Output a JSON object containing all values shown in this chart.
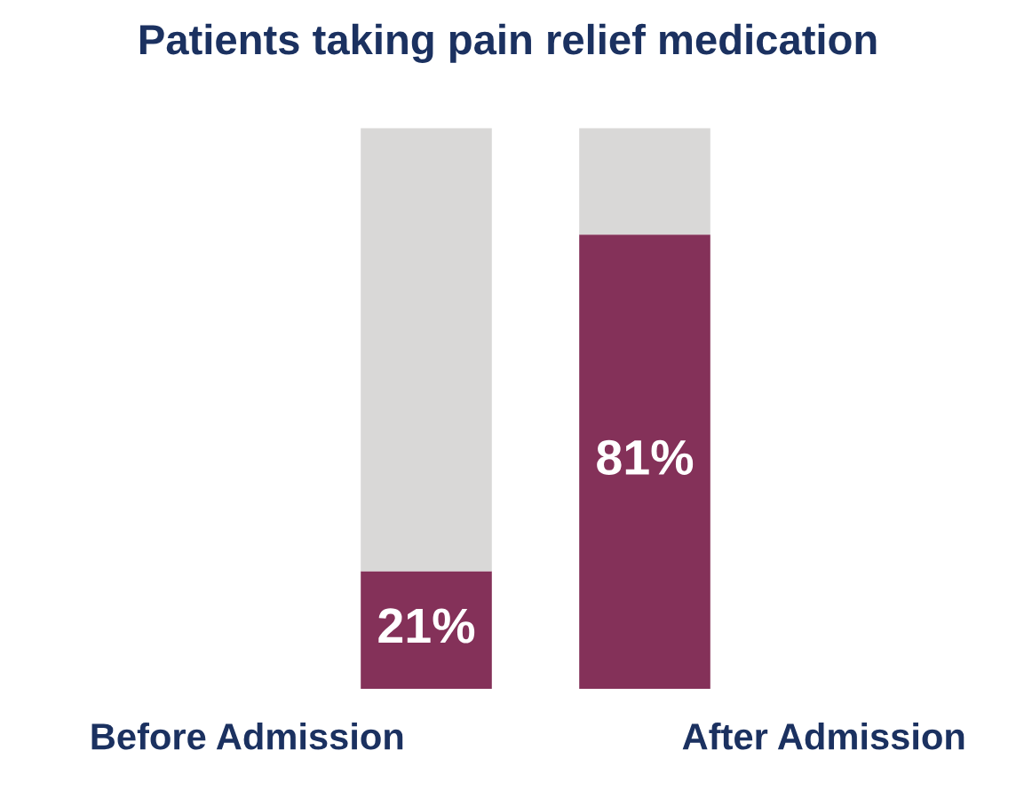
{
  "chart_data": {
    "type": "bar",
    "title": "Patients taking pain relief medication",
    "categories": [
      "Before Admission",
      "After Admission"
    ],
    "stacked": true,
    "ylim": [
      0,
      100
    ],
    "tick_labels": "x",
    "series": [
      {
        "color": "#843159",
        "values": [
          21,
          81
        ],
        "value_labels": [
          "21%",
          "81%"
        ]
      },
      {
        "color": "#d9d8d7",
        "values": [
          79,
          19
        ]
      }
    ]
  }
}
